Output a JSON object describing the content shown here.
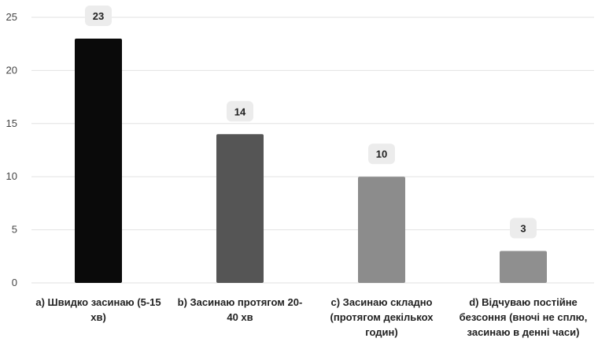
{
  "chart_data": {
    "type": "bar",
    "categories": [
      [
        "a) Швидко засинаю (5-15",
        "хв)"
      ],
      [
        "b) Засинаю протягом 20-",
        "40 хв"
      ],
      [
        "c) Засинаю складно",
        "(протягом декількох",
        "годин)"
      ],
      [
        "d) Відчуваю постійне",
        "безсоння (вночі не сплю,",
        "засинаю в денні часи)"
      ]
    ],
    "values": [
      23,
      14,
      10,
      3
    ],
    "ylim": [
      0,
      25
    ],
    "yticks": [
      0,
      5,
      10,
      15,
      20,
      25
    ],
    "grid": true,
    "bar_colors": [
      "#0a0a0a",
      "#555555",
      "#8c8c8c",
      "#8f8f8f"
    ],
    "label_bg": "#ececec",
    "grid_color": "#e2e2e2"
  }
}
